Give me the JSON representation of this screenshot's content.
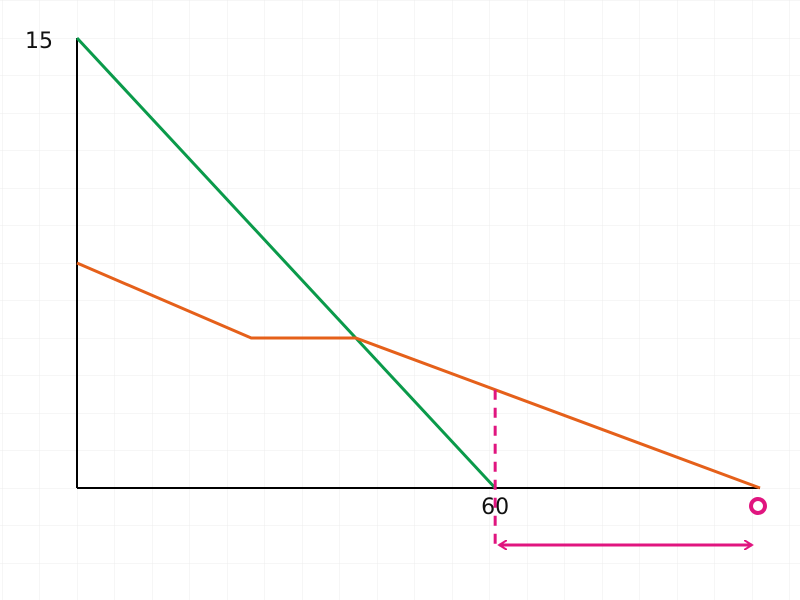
{
  "chart_data": {
    "type": "line",
    "series": [
      {
        "color": "#0a9a4a",
        "x": [
          0,
          60
        ],
        "values": [
          15,
          0
        ]
      },
      {
        "color": "#e5601a",
        "x": [
          0,
          25,
          40,
          98
        ],
        "values": [
          7.5,
          5,
          5,
          0
        ]
      }
    ],
    "xlim": [
      0,
      98
    ],
    "ylim": [
      0,
      15
    ],
    "xticks": [
      60
    ],
    "yticks": [
      15
    ],
    "grid": true,
    "annotation_color": "#e0157f"
  }
}
